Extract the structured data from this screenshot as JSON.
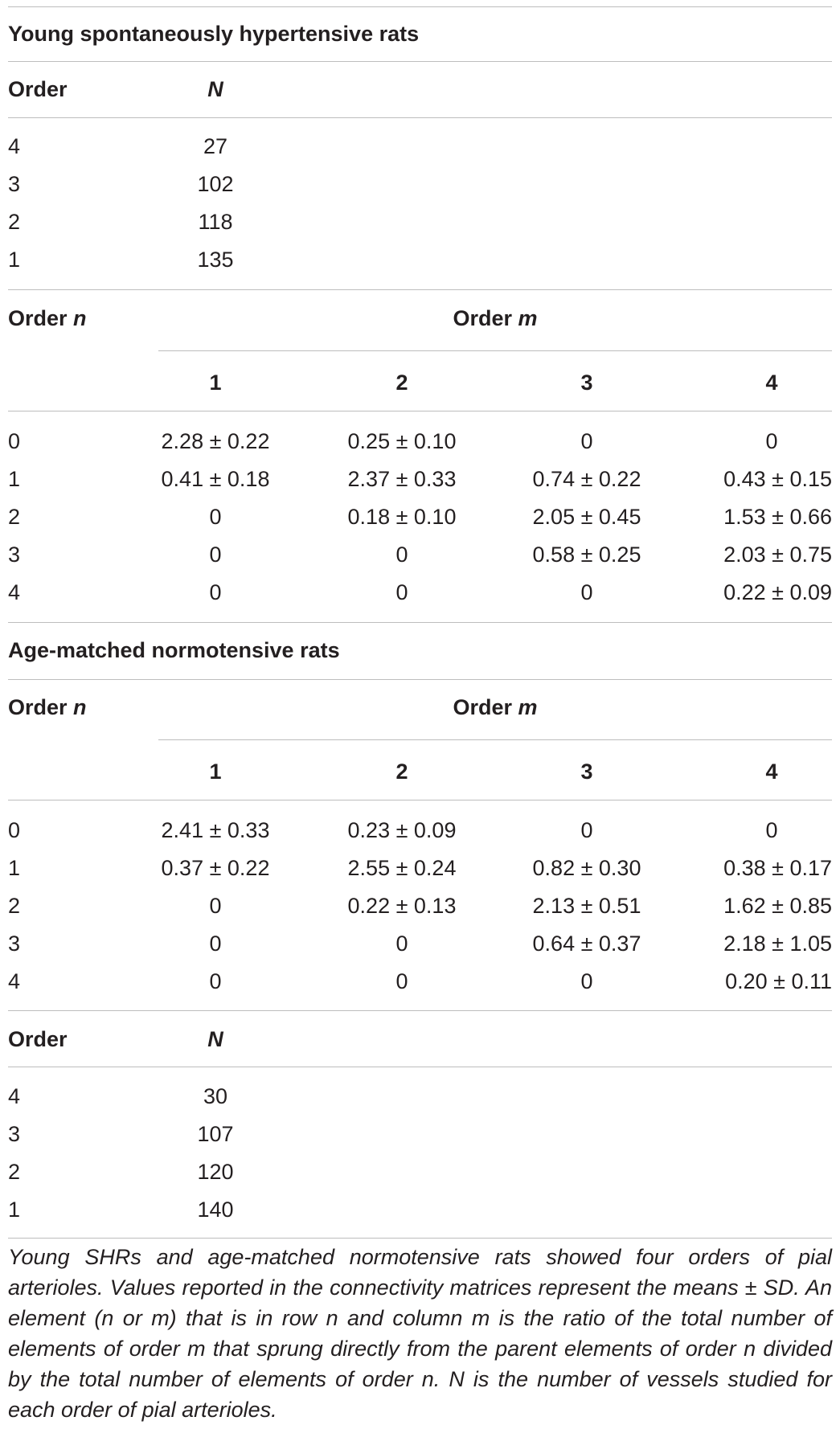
{
  "shr": {
    "title": "Young spontaneously hypertensive rats",
    "n_header": {
      "order": "Order",
      "n": "N"
    },
    "n_rows": [
      {
        "order": "4",
        "n": "27"
      },
      {
        "order": "3",
        "n": "102"
      },
      {
        "order": "2",
        "n": "118"
      },
      {
        "order": "1",
        "n": "135"
      }
    ],
    "matrix_header": {
      "row_label": "Order",
      "row_var": "n",
      "col_label": "Order",
      "col_var": "m",
      "cols": [
        "1",
        "2",
        "3",
        "4"
      ]
    },
    "matrix_rows": [
      {
        "order": "0",
        "values": [
          "2.28 ± 0.22",
          "0.25 ± 0.10",
          "0",
          "0"
        ]
      },
      {
        "order": "1",
        "values": [
          "0.41 ± 0.18",
          "2.37 ± 0.33",
          "0.74 ± 0.22",
          "0.43 ± 0.15"
        ]
      },
      {
        "order": "2",
        "values": [
          "0",
          "0.18 ± 0.10",
          "2.05 ± 0.45",
          "1.53 ± 0.66"
        ]
      },
      {
        "order": "3",
        "values": [
          "0",
          "0",
          "0.58 ± 0.25",
          "2.03 ± 0.75"
        ]
      },
      {
        "order": "4",
        "values": [
          "0",
          "0",
          "0",
          "0.22 ± 0.09"
        ]
      }
    ]
  },
  "nr": {
    "title": "Age-matched normotensive rats",
    "matrix_header": {
      "row_label": "Order",
      "row_var": "n",
      "col_label": "Order",
      "col_var": "m",
      "cols": [
        "1",
        "2",
        "3",
        "4"
      ]
    },
    "matrix_rows": [
      {
        "order": "0",
        "values": [
          "2.41 ± 0.33",
          "0.23 ± 0.09",
          "0",
          "0"
        ]
      },
      {
        "order": "1",
        "values": [
          "0.37 ± 0.22",
          "2.55 ± 0.24",
          "0.82 ± 0.30",
          "0.38 ± 0.17"
        ]
      },
      {
        "order": "2",
        "values": [
          "0",
          "0.22 ± 0.13",
          "2.13 ± 0.51",
          "1.62 ± 0.85"
        ]
      },
      {
        "order": "3",
        "values": [
          "0",
          "0",
          "0.64 ± 0.37",
          "2.18 ± 1.05"
        ]
      },
      {
        "order": "4",
        "values": [
          "0",
          "0",
          "0",
          "0.20 ± 0.11"
        ]
      }
    ],
    "n_header": {
      "order": "Order",
      "n": "N"
    },
    "n_rows": [
      {
        "order": "4",
        "n": "30"
      },
      {
        "order": "3",
        "n": "107"
      },
      {
        "order": "2",
        "n": "120"
      },
      {
        "order": "1",
        "n": "140"
      }
    ]
  },
  "footnote": "Young SHRs and age-matched normotensive rats showed four orders of pial arterioles. Values reported in the connectivity matrices represent the means ± SD. An element (n or m) that is in row n and column m is the ratio of the total number of elements of order m that sprung directly from the parent elements of order n divided by the total number of elements of order n. N is the number of vessels studied for each order of pial arterioles."
}
